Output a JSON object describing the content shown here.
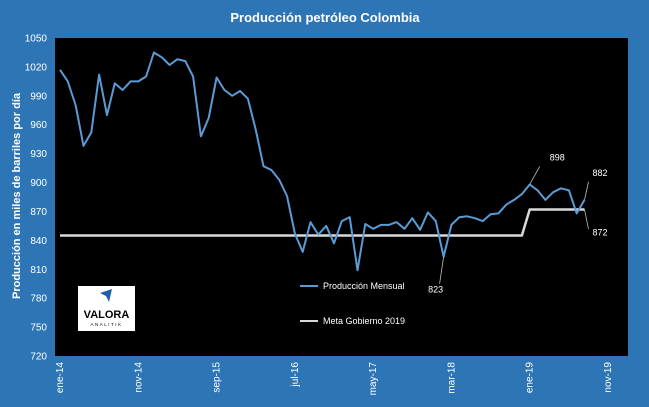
{
  "chart_data": {
    "type": "line",
    "title": "Producción petróleo Colombia",
    "ylabel": "Producción en miles de barriles por día",
    "xlabel": "",
    "ylim": [
      720,
      1050
    ],
    "yticks": [
      720,
      750,
      780,
      810,
      840,
      870,
      900,
      930,
      960,
      990,
      1020,
      1050
    ],
    "xtick_labels": [
      "ene-14",
      "nov-14",
      "sep-15",
      "jul-16",
      "may-17",
      "mar-18",
      "ene-19",
      "nov-19"
    ],
    "xtick_index": [
      0,
      10,
      20,
      30,
      40,
      50,
      60,
      70
    ],
    "series": [
      {
        "name": "Producción Mensual",
        "color": "#5b9bd5",
        "values": [
          1017,
          1005,
          980,
          938,
          952,
          1012,
          970,
          1003,
          996,
          1005,
          1005,
          1010,
          1035,
          1030,
          1022,
          1028,
          1026,
          1010,
          948,
          967,
          1009,
          996,
          990,
          995,
          987,
          955,
          917,
          913,
          903,
          886,
          847,
          828,
          859,
          846,
          855,
          837,
          860,
          864,
          809,
          857,
          852,
          856,
          856,
          859,
          852,
          863,
          851,
          869,
          860,
          823,
          856,
          864,
          865,
          863,
          860,
          867,
          868,
          877,
          882,
          888,
          898,
          892,
          882,
          890,
          894,
          892,
          868,
          882
        ]
      },
      {
        "name": "Meta Gobierno 2019",
        "color": "#d9d9d9",
        "values": [
          845,
          845,
          845,
          845,
          845,
          845,
          845,
          845,
          845,
          845,
          845,
          845,
          845,
          845,
          845,
          845,
          845,
          845,
          845,
          845,
          845,
          845,
          845,
          845,
          845,
          845,
          845,
          845,
          845,
          845,
          845,
          845,
          845,
          845,
          845,
          845,
          845,
          845,
          845,
          845,
          845,
          845,
          845,
          845,
          845,
          845,
          845,
          845,
          845,
          845,
          845,
          845,
          845,
          845,
          845,
          845,
          845,
          845,
          845,
          845,
          872,
          872,
          872,
          872,
          872,
          872,
          872,
          872
        ]
      }
    ],
    "annotations": [
      {
        "label": "898",
        "index": 60,
        "value": 898
      },
      {
        "label": "823",
        "index": 49,
        "value": 823
      },
      {
        "label": "882",
        "index": 67,
        "value": 882
      },
      {
        "label": "872",
        "index": 67,
        "value": 872
      }
    ],
    "legend_placement": "center-bottom",
    "grid": false
  },
  "logo": {
    "text": "VALORA",
    "subtext": "ANALITIK",
    "mark_color": "#1f5fa8"
  }
}
